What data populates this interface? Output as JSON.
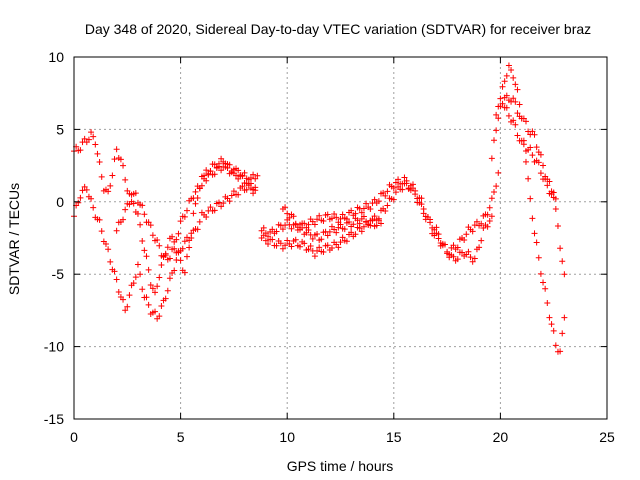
{
  "chart_data": {
    "type": "scatter",
    "title": "Day 348 of 2020, Sidereal Day-to-day VTEC variation (SDTVAR) for receiver braz",
    "xlabel": "GPS time / hours",
    "ylabel": "SDTVAR / TECUs",
    "xlim": [
      0,
      25
    ],
    "ylim": [
      -15,
      10
    ],
    "xticks": [
      0,
      5,
      10,
      15,
      20,
      25
    ],
    "yticks": [
      -15,
      -10,
      -5,
      0,
      5,
      10
    ],
    "xtick_labels": [
      "0",
      "5",
      "10",
      "15",
      "20",
      "25"
    ],
    "ytick_labels": [
      "-15",
      "-10",
      "-5",
      "0",
      "5",
      "10"
    ],
    "grid": true,
    "marker": "+",
    "color": "#ff0000",
    "series": [
      {
        "name": "track-a",
        "x": [
          0.0,
          0.2,
          0.4,
          0.6,
          0.8,
          1.0,
          1.2,
          1.4,
          1.6,
          1.8,
          2.0,
          2.2,
          2.4,
          2.6,
          2.8,
          3.0,
          3.2,
          3.4,
          3.6,
          3.8,
          4.0,
          4.2,
          4.4,
          4.6,
          4.8,
          5.0,
          5.2,
          5.4,
          5.6,
          5.8,
          6.0,
          6.5,
          7.0,
          7.5,
          8.0,
          8.5
        ],
        "y": [
          3.5,
          3.6,
          4.0,
          4.3,
          4.6,
          4.2,
          2.5,
          1.0,
          0.5,
          2.0,
          3.5,
          3.0,
          1.5,
          0.5,
          0.0,
          -1.0,
          -2.5,
          -4.0,
          -5.5,
          -6.5,
          -5.0,
          -4.0,
          -3.0,
          -2.5,
          -3.5,
          -4.0,
          -5.0,
          -3.0,
          -1.0,
          0.5,
          1.5,
          2.0,
          2.5,
          2.0,
          1.5,
          1.0
        ]
      },
      {
        "name": "track-b",
        "x": [
          0.0,
          0.3,
          0.6,
          0.9,
          1.2,
          1.5,
          1.8,
          2.1,
          2.4,
          2.7,
          3.0,
          3.3,
          3.6,
          3.9,
          4.2,
          4.5,
          4.8,
          5.1,
          5.4,
          5.7,
          6.0,
          6.5,
          7.0,
          7.5,
          8.0,
          8.5
        ],
        "y": [
          -1.0,
          0.5,
          1.0,
          -0.5,
          -1.5,
          -3.0,
          -4.5,
          -6.0,
          -7.5,
          -6.0,
          -4.5,
          -6.5,
          -7.5,
          -8.0,
          -7.0,
          -5.5,
          -4.0,
          -3.0,
          -2.5,
          -2.0,
          -1.0,
          -0.5,
          0.0,
          0.5,
          1.0,
          0.8
        ]
      },
      {
        "name": "track-c",
        "x": [
          2.0,
          2.3,
          2.6,
          2.9,
          3.2,
          3.5,
          3.8,
          4.1,
          4.4,
          4.7,
          5.0,
          5.3,
          5.6,
          5.9,
          6.2,
          6.6,
          7.0,
          7.4,
          7.8,
          8.2,
          8.6
        ],
        "y": [
          -2.0,
          -1.0,
          0.0,
          0.5,
          -0.5,
          -1.5,
          -2.5,
          -3.5,
          -4.0,
          -3.0,
          -1.5,
          -0.5,
          0.5,
          1.0,
          2.0,
          2.5,
          2.8,
          2.2,
          2.0,
          1.5,
          1.8
        ]
      },
      {
        "name": "track-d",
        "x": [
          8.8,
          9.2,
          9.6,
          10.0,
          10.5,
          11.0,
          11.5,
          12.0,
          12.5,
          13.0,
          13.5,
          14.0,
          14.5,
          15.0,
          15.5,
          16.0,
          16.5,
          17.0,
          17.5,
          18.0,
          18.5,
          19.0,
          19.3,
          19.6,
          19.9
        ],
        "y": [
          -2.0,
          -2.2,
          -1.8,
          -1.5,
          -1.8,
          -1.5,
          -1.2,
          -1.0,
          -1.2,
          -0.8,
          -0.5,
          -0.2,
          0.5,
          1.2,
          1.5,
          0.5,
          -1.0,
          -2.0,
          -3.5,
          -3.0,
          -2.0,
          -1.5,
          -1.0,
          0.0,
          2.0
        ]
      },
      {
        "name": "track-e",
        "x": [
          8.8,
          9.3,
          9.8,
          10.3,
          10.8,
          11.3,
          11.8,
          12.3,
          12.8,
          13.3,
          13.8,
          14.3,
          14.8,
          15.3,
          15.8,
          16.3,
          16.8,
          17.3,
          17.8,
          18.3,
          18.8,
          19.2,
          19.6
        ],
        "y": [
          -2.5,
          -2.8,
          -3.0,
          -2.8,
          -3.0,
          -3.5,
          -3.2,
          -3.0,
          -2.5,
          -2.0,
          -1.5,
          -1.0,
          0.0,
          1.0,
          1.2,
          0.0,
          -2.0,
          -3.0,
          -4.0,
          -3.5,
          -4.0,
          -2.0,
          -1.0
        ]
      },
      {
        "name": "track-f",
        "x": [
          9.8,
          10.2,
          10.6,
          11.0,
          11.5,
          12.0,
          12.5,
          13.0,
          13.5,
          14.0,
          14.4
        ],
        "y": [
          -0.5,
          -1.0,
          -1.8,
          -2.2,
          -2.5,
          -2.0,
          -1.8,
          -1.5,
          -1.2,
          -1.5,
          -1.5
        ]
      },
      {
        "name": "track-g",
        "x": [
          19.6,
          19.8,
          20.0,
          20.2,
          20.4,
          20.6,
          20.8,
          21.0,
          21.3,
          21.6,
          21.9,
          22.2,
          22.5,
          22.8,
          23.0
        ],
        "y": [
          3.0,
          5.0,
          7.0,
          8.5,
          9.2,
          8.8,
          7.5,
          6.0,
          5.0,
          4.5,
          3.0,
          1.5,
          0.5,
          -3.0,
          -5.0
        ]
      },
      {
        "name": "track-h",
        "x": [
          19.8,
          20.1,
          20.4,
          20.7,
          21.0,
          21.2,
          21.4,
          21.6,
          21.8,
          22.0,
          22.2,
          22.4,
          22.6,
          22.8,
          23.0
        ],
        "y": [
          6.0,
          7.0,
          7.2,
          6.8,
          5.5,
          3.0,
          0.0,
          -2.0,
          -4.0,
          -5.5,
          -7.0,
          -8.5,
          -9.8,
          -10.5,
          -8.0
        ]
      },
      {
        "name": "track-i",
        "x": [
          20.2,
          20.6,
          21.0,
          21.4,
          21.8,
          22.2,
          22.6
        ],
        "y": [
          6.5,
          5.5,
          4.0,
          3.5,
          2.5,
          1.0,
          0.2
        ]
      }
    ]
  }
}
